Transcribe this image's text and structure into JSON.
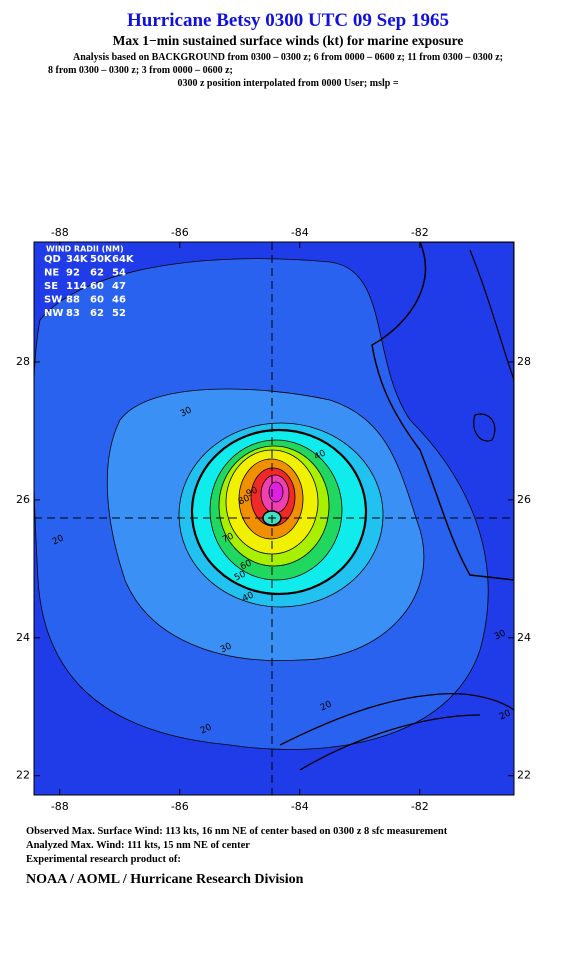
{
  "header": {
    "title": "Hurricane Betsy 0300 UTC 09 Sep 1965",
    "subtitle": "Max 1−min sustained surface winds (kt) for marine exposure",
    "analysis": [
      "Analysis based on  BACKGROUND from 0300 – 0300 z;  6 from 0000 – 0600 z;  11 from 0300 – 0300 z;",
      "8 from 0300 – 0300 z;  3 from 0000 – 0600 z;",
      "0300 z position interpolated from 0000 User; mslp ="
    ]
  },
  "map": {
    "lonlim": [
      -88.43,
      -80.43
    ],
    "latlim": [
      21.72,
      29.74
    ],
    "lonticks": [
      -88,
      -86,
      -84,
      -82
    ],
    "latticks": [
      22,
      24,
      26,
      28
    ],
    "radii_table": {
      "title": "WIND RADII (NM)",
      "rows": [
        [
          "QD",
          "34K",
          "50K",
          "64K"
        ],
        [
          "NE",
          92,
          62,
          54
        ],
        [
          "SE",
          114,
          60,
          47
        ],
        [
          "SW",
          88,
          60,
          46
        ],
        [
          "NW",
          83,
          62,
          52
        ]
      ]
    },
    "contour_labels": [
      "30",
      "40",
      "20",
      "80",
      "90",
      "70",
      "60",
      "50",
      "40",
      "30",
      "20",
      "20",
      "30",
      "20"
    ]
  },
  "footer": {
    "lines": [
      "Observed Max. Surface Wind: 113 kts, 16 nm NE of center based on 0300 z 8 sfc measurement",
      "Analyzed Max. Wind: 111 kts, 15 nm NE of center",
      "Experimental research product of:"
    ],
    "org": "NOAA / AOML / Hurricane Research Division"
  }
}
